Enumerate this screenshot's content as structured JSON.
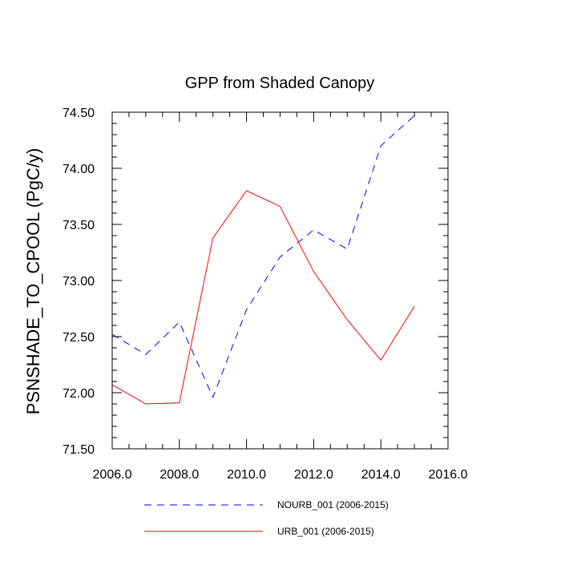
{
  "chart_data": {
    "type": "line",
    "title": "GPP from Shaded Canopy",
    "xlabel": "",
    "ylabel": "PSNSHADE_TO_CPOOL  (PgC/y)",
    "xlim": [
      2006,
      2016
    ],
    "ylim": [
      71.5,
      74.5
    ],
    "x_ticks": [
      2006,
      2008,
      2010,
      2012,
      2014,
      2016
    ],
    "x_tick_labels": [
      "2006.0",
      "2008.0",
      "2010.0",
      "2012.0",
      "2014.0",
      "2016.0"
    ],
    "y_ticks": [
      71.5,
      72.0,
      72.5,
      73.0,
      73.5,
      74.0,
      74.5
    ],
    "y_tick_labels": [
      "71.50",
      "72.00",
      "72.50",
      "73.00",
      "73.50",
      "74.00",
      "74.50"
    ],
    "x": [
      2006,
      2007,
      2008,
      2009,
      2010,
      2011,
      2012,
      2013,
      2014,
      2015
    ],
    "series": [
      {
        "name": "NOURB_001 (2006-2015)",
        "color": "#0000ff",
        "dash": "dashed",
        "values": [
          72.52,
          72.34,
          72.63,
          71.96,
          72.74,
          73.21,
          73.45,
          73.28,
          74.2,
          74.47
        ]
      },
      {
        "name": "URB_001 (2006-2015)",
        "color": "#ff0000",
        "dash": "solid",
        "values": [
          72.07,
          71.9,
          71.91,
          73.38,
          73.8,
          73.66,
          73.08,
          72.65,
          72.29,
          72.77
        ]
      }
    ],
    "legend_position": "bottom"
  }
}
